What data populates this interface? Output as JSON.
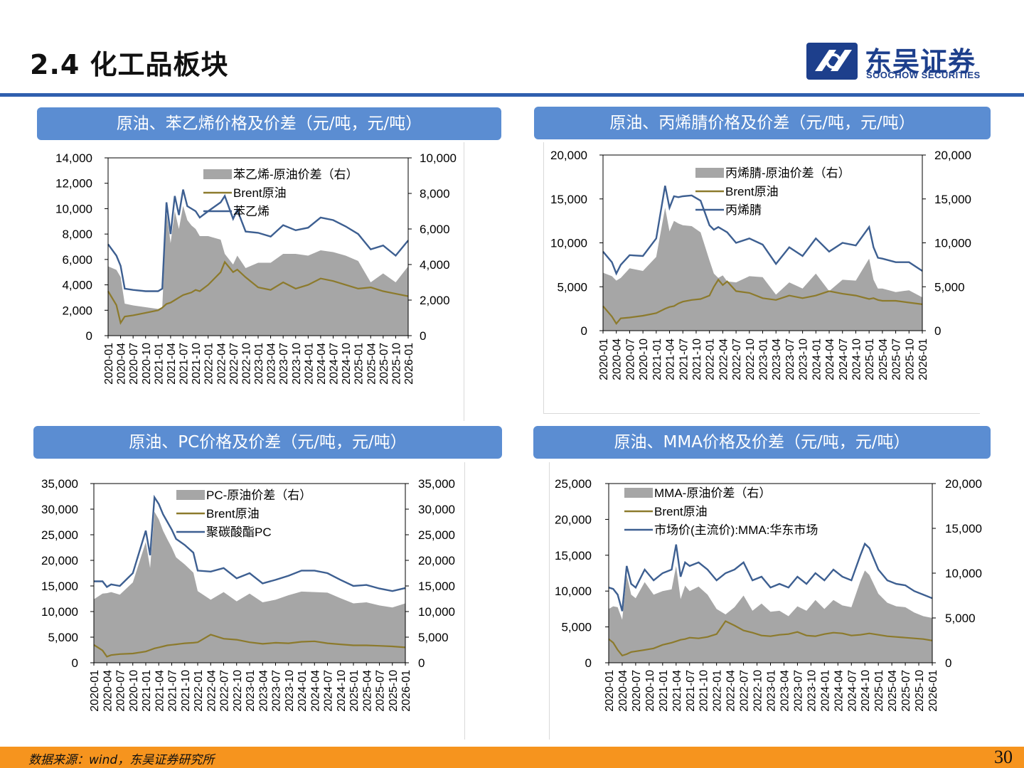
{
  "page": {
    "title": "2.4 化工品板块",
    "logo_cn": "东吴证券",
    "logo_en": "SOOCHOW SECURITIES",
    "footer_source": "数据来源：wind，东吴证券研究所",
    "page_number": "30",
    "colors": {
      "accent": "#2f5fae",
      "panel": "#5b8dd2",
      "footer": "#f6941e",
      "spread": "#a6a6a6",
      "brent": "#8c7a2c",
      "product": "#3d5f91"
    }
  },
  "x_ticks": [
    "2020-01",
    "2020-04",
    "2020-07",
    "2020-10",
    "2021-01",
    "2021-04",
    "2021-07",
    "2021-10",
    "2022-01",
    "2022-04",
    "2022-07",
    "2022-10",
    "2023-01",
    "2023-04",
    "2023-07",
    "2023-10",
    "2024-01",
    "2024-04",
    "2024-07",
    "2024-10",
    "2025-01",
    "2025-04",
    "2025-07",
    "2025-10",
    "2026-01"
  ],
  "chart_data": [
    {
      "type": "line",
      "title": "原油、苯乙烯价格及价差（元/吨，元/吨）",
      "legend": {
        "spread": "苯乙烯-原油价差（右）",
        "brent": "Brent原油",
        "product": "苯乙烯"
      },
      "ylim_left": [
        0,
        14000
      ],
      "yticks_left": [
        "0",
        "2,000",
        "4,000",
        "6,000",
        "8,000",
        "10,000",
        "12,000",
        "14,000"
      ],
      "ylim_right": [
        0,
        10000
      ],
      "yticks_right": [
        "0",
        "2,000",
        "4,000",
        "6,000",
        "8,000",
        "10,000"
      ],
      "x_index": [
        0,
        2,
        3,
        4,
        6,
        9,
        12,
        13,
        14,
        15,
        16,
        17,
        18,
        19,
        20,
        21,
        22,
        24,
        27,
        28,
        30,
        31,
        33,
        36,
        39,
        42,
        45,
        48,
        51,
        54,
        57,
        60,
        63,
        66,
        69,
        72
      ],
      "product": [
        7200,
        6300,
        5500,
        3700,
        3600,
        3500,
        3500,
        3700,
        10500,
        8000,
        11000,
        9500,
        11500,
        10200,
        10000,
        9800,
        9300,
        9800,
        10500,
        11000,
        9200,
        9900,
        8200,
        8100,
        7800,
        8700,
        8300,
        8500,
        9300,
        9100,
        8600,
        8000,
        6800,
        7100,
        6300,
        7500
      ],
      "brent": [
        3500,
        2400,
        1000,
        1500,
        1600,
        1800,
        2000,
        2200,
        2500,
        2600,
        2800,
        3000,
        3200,
        3300,
        3400,
        3600,
        3500,
        4000,
        5000,
        5800,
        5000,
        5200,
        4600,
        3800,
        3600,
        4200,
        3700,
        4000,
        4500,
        4300,
        4000,
        3700,
        3800,
        3500,
        3300,
        3100
      ],
      "spread": [
        3900,
        3700,
        3300,
        1800,
        1700,
        1600,
        1500,
        1600,
        7000,
        5200,
        7000,
        6000,
        7300,
        6500,
        6200,
        6000,
        5600,
        5600,
        5400,
        4600,
        4000,
        4500,
        3800,
        4100,
        4100,
        4600,
        4600,
        4500,
        4800,
        4700,
        4500,
        4200,
        3000,
        3500,
        3000,
        3900
      ]
    },
    {
      "type": "line",
      "title": "原油、丙烯腈价格及价差（元/吨，元/吨）",
      "legend": {
        "spread": "丙烯腈-原油价差（右）",
        "brent": "Brent原油",
        "product": "丙烯腈"
      },
      "ylim_left": [
        0,
        20000
      ],
      "yticks_left": [
        "0",
        "5,000",
        "10,000",
        "15,000",
        "20,000"
      ],
      "ylim_right": [
        0,
        20000
      ],
      "yticks_right": [
        "0",
        "5,000",
        "10,000",
        "15,000",
        "20,000"
      ],
      "x_index": [
        0,
        2,
        3,
        4,
        6,
        9,
        12,
        14,
        15,
        16,
        17,
        18,
        20,
        22,
        24,
        25,
        26,
        27,
        28,
        30,
        33,
        36,
        39,
        42,
        45,
        48,
        51,
        54,
        57,
        60,
        61,
        62,
        63,
        66,
        69,
        72
      ],
      "product": [
        9000,
        7800,
        6500,
        7500,
        8600,
        8500,
        10500,
        16500,
        14000,
        15300,
        15200,
        15300,
        15400,
        14800,
        12000,
        11500,
        11800,
        11500,
        11200,
        10000,
        10500,
        9800,
        7600,
        9500,
        8500,
        10500,
        9000,
        10000,
        9700,
        11800,
        9500,
        8300,
        8200,
        7800,
        7800,
        6800
      ],
      "brent": [
        2800,
        1600,
        800,
        1400,
        1500,
        1700,
        2000,
        2500,
        2700,
        2800,
        3100,
        3300,
        3500,
        3600,
        4000,
        5000,
        5800,
        5200,
        5600,
        4500,
        4300,
        3700,
        3500,
        4000,
        3700,
        4000,
        4500,
        4200,
        4000,
        3600,
        3700,
        3500,
        3400,
        3400,
        3200,
        3000
      ],
      "spread": [
        6600,
        6200,
        5700,
        6000,
        7100,
        6800,
        8400,
        14000,
        11300,
        12500,
        12200,
        12000,
        11900,
        11200,
        8000,
        6500,
        6000,
        6300,
        5600,
        5500,
        6200,
        6100,
        4100,
        5500,
        4800,
        6500,
        4500,
        5800,
        5700,
        8200,
        5800,
        4800,
        4800,
        4400,
        4600,
        3800
      ]
    },
    {
      "type": "line",
      "title": "原油、PC价格及价差（元/吨，元/吨）",
      "legend": {
        "spread": "PC-原油价差（右）",
        "brent": "Brent原油",
        "product": "聚碳酸酯PC"
      },
      "ylim_left": [
        0,
        35000
      ],
      "yticks_left": [
        "0",
        "5,000",
        "10,000",
        "15,000",
        "20,000",
        "25,000",
        "30,000",
        "35,000"
      ],
      "ylim_right": [
        0,
        35000
      ],
      "yticks_right": [
        "0",
        "5,000",
        "10,000",
        "15,000",
        "20,000",
        "25,000",
        "30,000",
        "35,000"
      ],
      "x_index": [
        0,
        2,
        3,
        4,
        6,
        9,
        12,
        13,
        14,
        15,
        16,
        17,
        18,
        19,
        21,
        23,
        24,
        27,
        30,
        33,
        36,
        39,
        42,
        45,
        48,
        51,
        54,
        57,
        60,
        63,
        66,
        69,
        72
      ],
      "product": [
        15900,
        15900,
        14800,
        15300,
        15000,
        17500,
        25800,
        21000,
        32300,
        31000,
        29000,
        27500,
        26000,
        24200,
        23000,
        21500,
        18000,
        17800,
        18500,
        16500,
        17500,
        15500,
        16200,
        17000,
        18000,
        18000,
        17500,
        16200,
        15000,
        15200,
        14500,
        14000,
        14600
      ],
      "brent": [
        3500,
        2400,
        1200,
        1500,
        1700,
        1800,
        2200,
        2500,
        2800,
        3000,
        3200,
        3400,
        3500,
        3600,
        3800,
        3900,
        4000,
        5500,
        4700,
        4500,
        4000,
        3700,
        3900,
        3800,
        4100,
        4200,
        3800,
        3600,
        3400,
        3400,
        3300,
        3200,
        3000
      ],
      "spread": [
        12400,
        13500,
        13600,
        13800,
        13300,
        15700,
        23600,
        18500,
        29500,
        28000,
        25800,
        24100,
        22500,
        20600,
        19200,
        17600,
        14000,
        12300,
        13800,
        12000,
        13500,
        11800,
        12300,
        13200,
        13900,
        13800,
        13700,
        12600,
        11600,
        11800,
        11200,
        10800,
        11600
      ]
    },
    {
      "type": "line",
      "title": "原油、MMA价格及价差（元/吨，元/吨）",
      "legend": {
        "spread": "MMA-原油价差（右）",
        "brent": "Brent原油",
        "product": "市场价(主流价):MMA:华东市场"
      },
      "ylim_left": [
        0,
        25000
      ],
      "yticks_left": [
        "0",
        "5,000",
        "10,000",
        "15,000",
        "20,000",
        "25,000"
      ],
      "ylim_right": [
        0,
        20000
      ],
      "yticks_right": [
        "0",
        "5,000",
        "10,000",
        "15,000",
        "20,000"
      ],
      "x_index": [
        0,
        1,
        2,
        3,
        4,
        5,
        6,
        8,
        10,
        12,
        14,
        15,
        16,
        17,
        18,
        20,
        22,
        24,
        26,
        28,
        30,
        32,
        34,
        36,
        38,
        40,
        42,
        44,
        46,
        48,
        50,
        52,
        54,
        56,
        57,
        58,
        60,
        62,
        64,
        66,
        68,
        70,
        72
      ],
      "product": [
        10500,
        10300,
        9500,
        7200,
        13500,
        11000,
        10500,
        13000,
        11500,
        12500,
        13000,
        16500,
        12000,
        14000,
        13500,
        14000,
        13000,
        11500,
        12500,
        13000,
        14000,
        11500,
        12000,
        10500,
        11000,
        10500,
        12000,
        11000,
        12500,
        11500,
        13000,
        12000,
        11500,
        15000,
        16600,
        16000,
        13000,
        11500,
        11000,
        10800,
        10000,
        9500,
        9000
      ],
      "brent": [
        3300,
        2800,
        1800,
        1000,
        1200,
        1500,
        1600,
        1800,
        2000,
        2500,
        2800,
        3000,
        3200,
        3300,
        3500,
        3400,
        3600,
        4000,
        5800,
        5200,
        4500,
        4200,
        3800,
        3700,
        3900,
        4000,
        4300,
        3800,
        3700,
        4000,
        4200,
        4100,
        3800,
        3900,
        4000,
        4100,
        3900,
        3700,
        3600,
        3500,
        3400,
        3300,
        3100
      ],
      "spread": [
        6000,
        6300,
        6200,
        4800,
        9800,
        7600,
        7200,
        9000,
        7600,
        8000,
        8200,
        10800,
        7100,
        8600,
        8000,
        8500,
        7600,
        6000,
        5400,
        6200,
        7500,
        5800,
        6600,
        5700,
        5800,
        5200,
        6300,
        5800,
        7000,
        6000,
        7000,
        6400,
        6200,
        9100,
        10300,
        9800,
        7700,
        6700,
        6300,
        6200,
        5600,
        5200,
        5000
      ]
    }
  ]
}
